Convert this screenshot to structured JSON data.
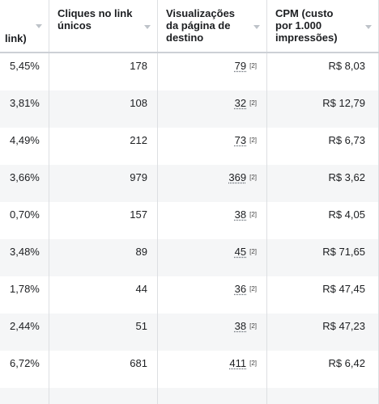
{
  "table": {
    "headers": [
      "link)",
      "Cliques no link\núnicos",
      "Visualizações\nda página de\ndestino",
      "CPM (custo\npor 1.000\nimpressões)"
    ],
    "rows": [
      [
        "5,45%",
        "178",
        {
          "value": "79",
          "note": "[2]"
        },
        "R$ 8,03"
      ],
      [
        "3,81%",
        "108",
        {
          "value": "32",
          "note": "[2]"
        },
        "R$ 12,79"
      ],
      [
        "4,49%",
        "212",
        {
          "value": "73",
          "note": "[2]"
        },
        "R$ 6,73"
      ],
      [
        "3,66%",
        "979",
        {
          "value": "369",
          "note": "[2]"
        },
        "R$ 3,62"
      ],
      [
        "0,70%",
        "157",
        {
          "value": "38",
          "note": "[2]"
        },
        "R$ 4,05"
      ],
      [
        "3,48%",
        "89",
        {
          "value": "45",
          "note": "[2]"
        },
        "R$ 71,65"
      ],
      [
        "1,78%",
        "44",
        {
          "value": "36",
          "note": "[2]"
        },
        "R$ 47,45"
      ],
      [
        "2,44%",
        "51",
        {
          "value": "38",
          "note": "[2]"
        },
        "R$ 47,23"
      ],
      [
        "6,72%",
        "681",
        {
          "value": "411",
          "note": "[2]"
        },
        "R$ 6,42"
      ]
    ]
  }
}
